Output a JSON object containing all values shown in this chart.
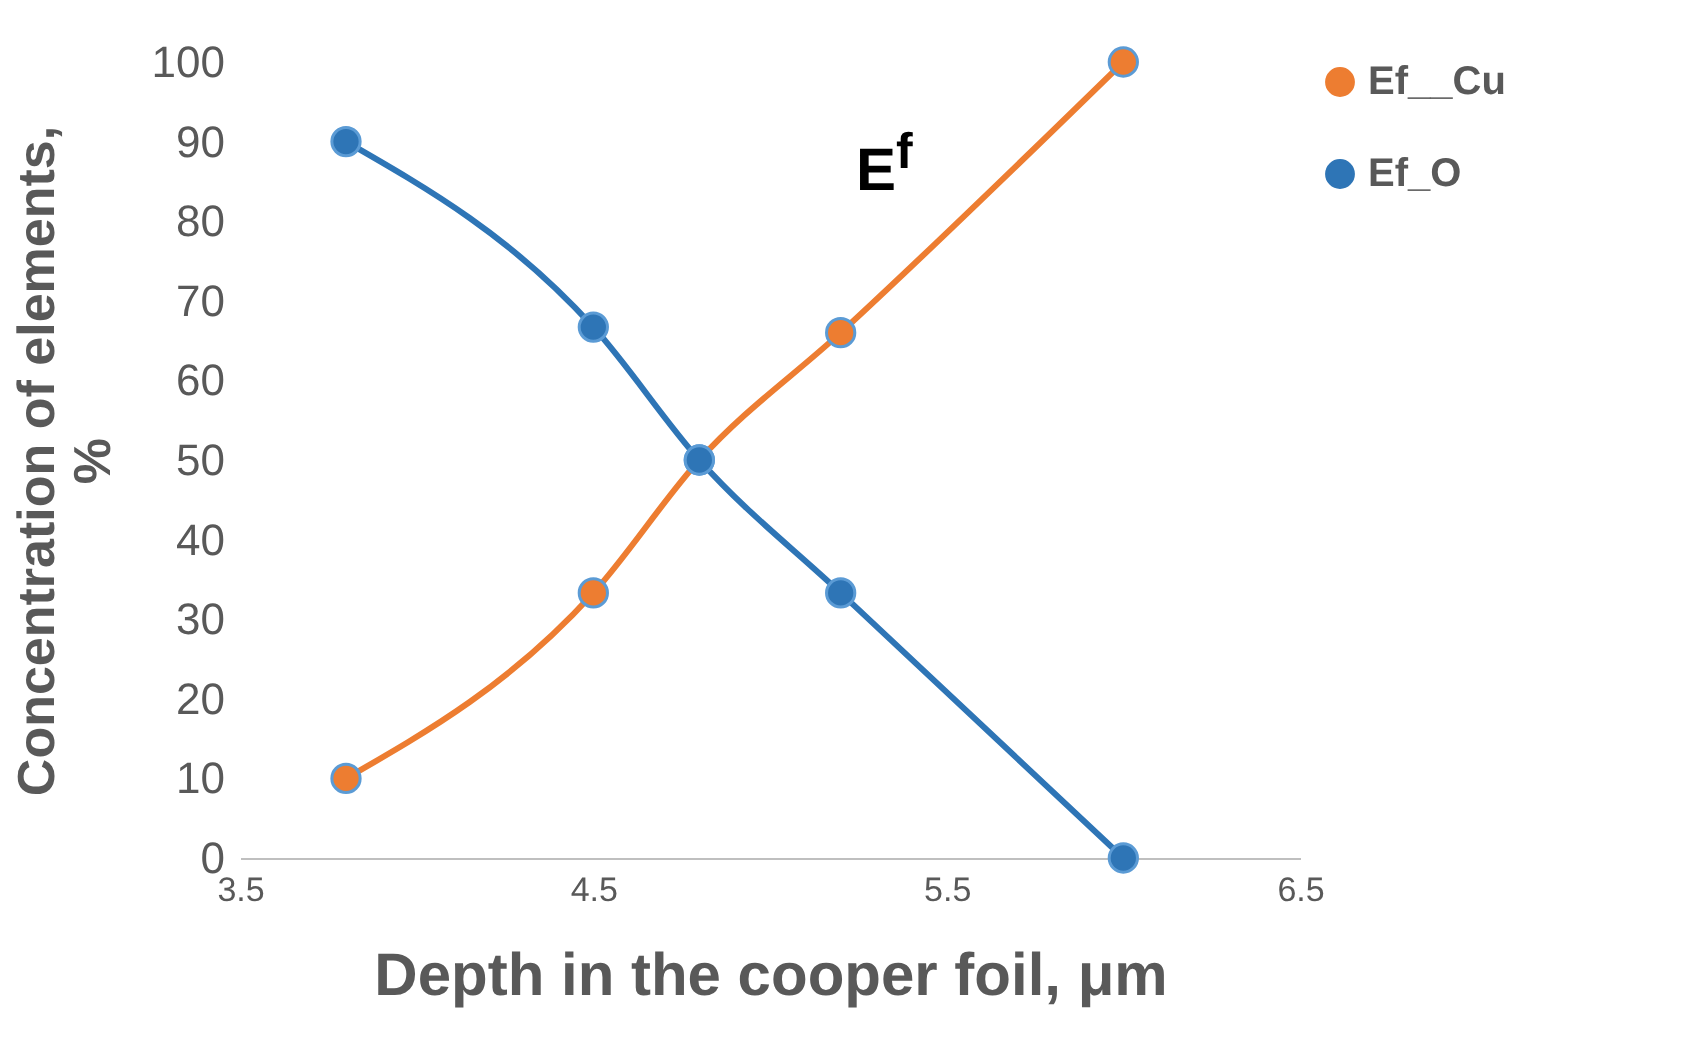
{
  "chart_data": {
    "type": "line",
    "title": "E$^{f}$",
    "xlabel": "Depth in the cooper foil, μm",
    "ylabel": "Concentration of elements, %",
    "x": [
      3.8,
      4.5,
      4.8,
      5.2,
      6.0
    ],
    "series": [
      {
        "name": "Ef__Cu",
        "color": "#ed7d31",
        "values": [
          10,
          33.3,
          50,
          66,
          100
        ]
      },
      {
        "name": "Ef_O",
        "color": "#2e75b6",
        "values": [
          90,
          66.7,
          50,
          33.3,
          0
        ]
      }
    ],
    "xlim": [
      3.5,
      6.5
    ],
    "xticks": [
      3.5,
      4.5,
      5.5,
      6.5
    ],
    "ylim": [
      0,
      100
    ],
    "yticks": [
      0,
      10,
      20,
      30,
      40,
      50,
      60,
      70,
      80,
      90,
      100
    ],
    "grid": false,
    "legend": "right",
    "marker": "circle",
    "line_style": "solid"
  }
}
